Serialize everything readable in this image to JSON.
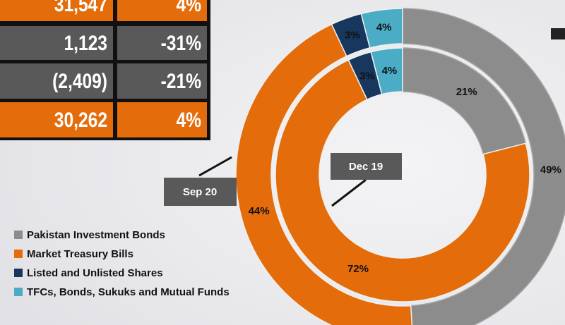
{
  "table": {
    "rows": [
      [
        "31,547",
        "4%"
      ],
      [
        "1,123",
        "-31%"
      ],
      [
        "(2,409)",
        "-21%"
      ],
      [
        "30,262",
        "4%"
      ]
    ]
  },
  "chart_data": {
    "type": "donut",
    "categories": [
      "Pakistan Investment Bonds",
      "Market Treasury Bills",
      "Listed and Unlisted Shares",
      "TFCs, Bonds, Sukuks and Mutual Funds"
    ],
    "colors": [
      "#8c8c8c",
      "#e46c0a",
      "#17375e",
      "#4bacc6"
    ],
    "series": [
      {
        "name": "Sep 20",
        "values": [
          49,
          44,
          3,
          4
        ],
        "value_labels": [
          "49%",
          "44%",
          "3%",
          "4%"
        ]
      },
      {
        "name": "Dec 19",
        "values": [
          21,
          72,
          3,
          4
        ],
        "value_labels": [
          "21%",
          "72%",
          "3%",
          "4%"
        ]
      }
    ]
  }
}
